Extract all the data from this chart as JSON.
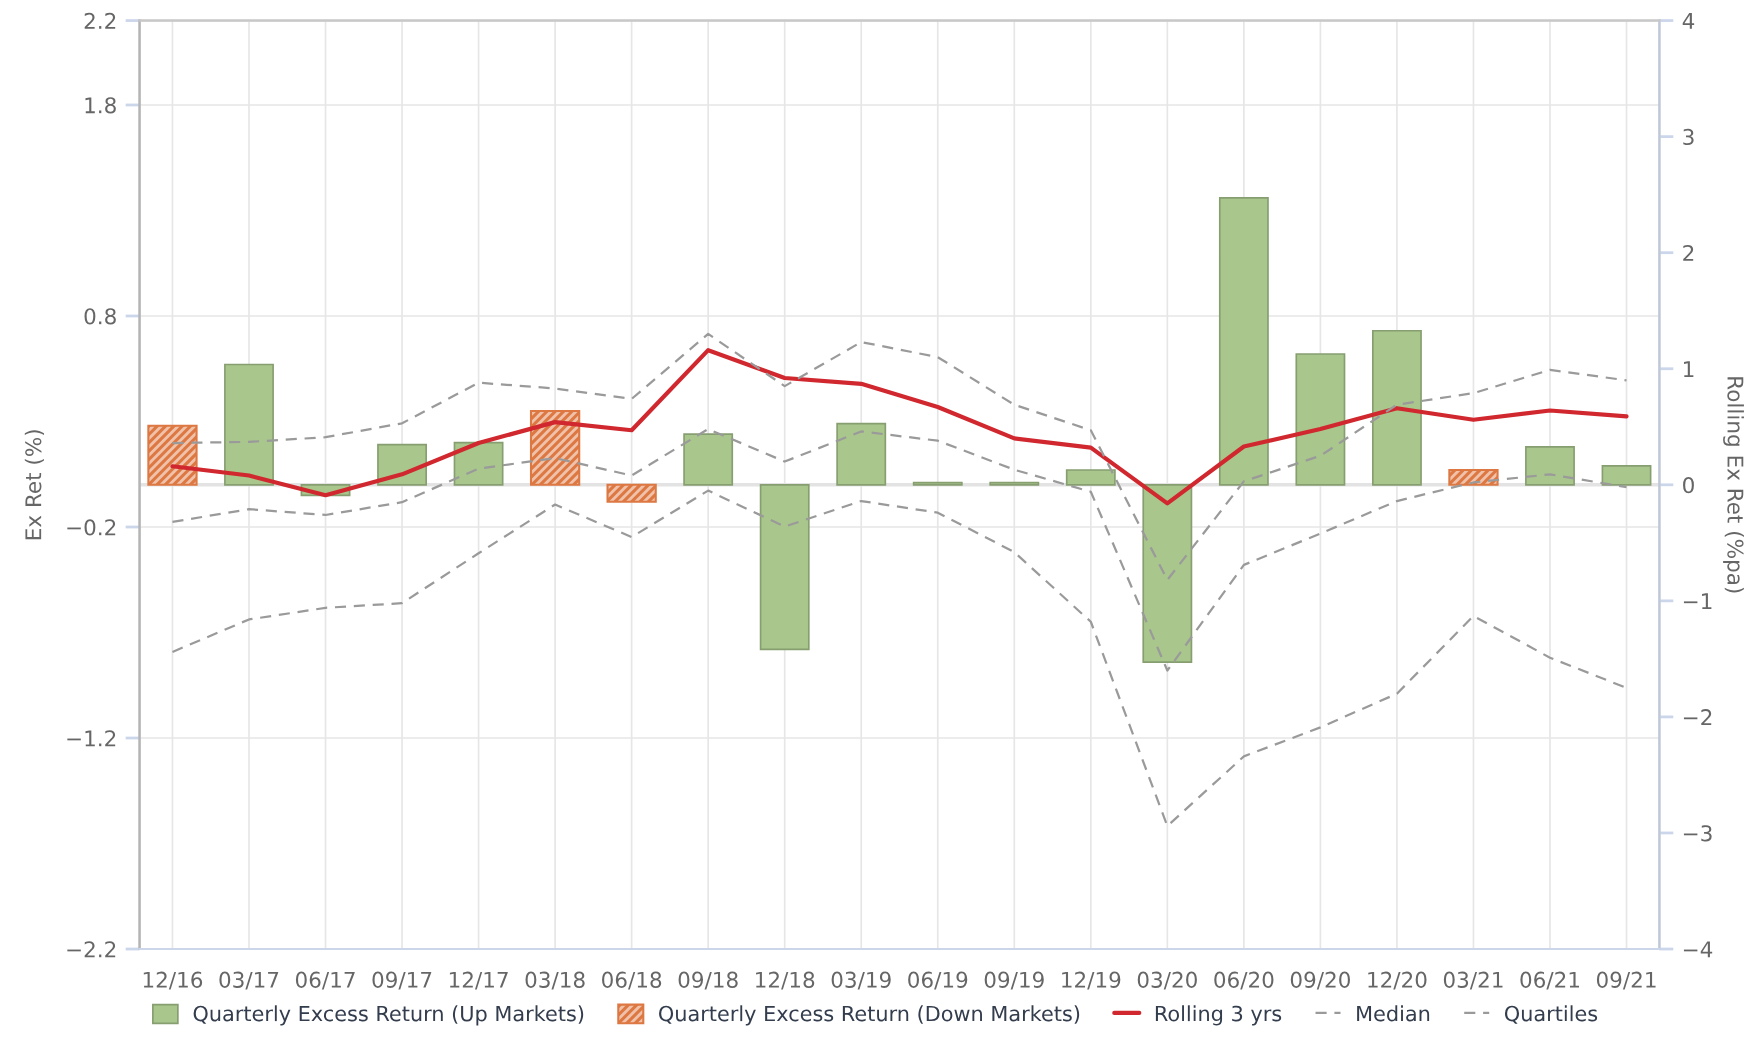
{
  "chart_data": {
    "type": "bar",
    "categories": [
      "12/16",
      "03/17",
      "06/17",
      "09/17",
      "12/17",
      "03/18",
      "06/18",
      "09/18",
      "12/18",
      "03/19",
      "06/19",
      "09/19",
      "12/19",
      "03/20",
      "06/20",
      "09/20",
      "12/20",
      "03/21",
      "06/21",
      "09/21"
    ],
    "series": [
      {
        "name": "Quarterly Excess Return (Up Markets)",
        "color": "#a9c68c",
        "values": [
          null,
          0.57,
          -0.05,
          0.19,
          0.2,
          null,
          null,
          0.24,
          -0.78,
          0.29,
          0.01,
          0.01,
          0.07,
          -0.84,
          1.36,
          0.62,
          0.73,
          null,
          0.18,
          0.09
        ]
      },
      {
        "name": "Quarterly Excess Return (Down Markets)",
        "color": "#dd7843",
        "values": [
          0.28,
          null,
          null,
          null,
          null,
          0.35,
          -0.08,
          null,
          null,
          null,
          null,
          null,
          null,
          null,
          null,
          null,
          null,
          0.07,
          null,
          null
        ]
      },
      {
        "name": "Rolling 3 yrs",
        "type": "line",
        "axis": "y2",
        "color": "#d0282e",
        "line_style": "solid",
        "values": [
          0.16,
          0.08,
          -0.09,
          0.09,
          0.36,
          0.54,
          0.47,
          1.16,
          0.92,
          0.87,
          0.67,
          0.4,
          0.32,
          -0.16,
          0.33,
          0.48,
          0.66,
          0.56,
          0.64,
          0.59
        ]
      },
      {
        "name": "Median",
        "type": "line",
        "axis": "y2",
        "color": "#9a9a9a",
        "line_style": "dashed",
        "values": [
          -0.32,
          -0.21,
          -0.26,
          -0.15,
          0.14,
          0.23,
          0.08,
          0.48,
          0.2,
          0.46,
          0.38,
          0.13,
          -0.06,
          -1.6,
          -0.69,
          -0.42,
          -0.14,
          0.02,
          0.09,
          -0.02
        ]
      },
      {
        "name": "Quartiles",
        "type": "line",
        "axis": "y2",
        "color": "#9a9a9a",
        "line_style": "dashed",
        "values": [
          0.36,
          0.37,
          0.41,
          0.53,
          0.88,
          0.83,
          0.74,
          1.3,
          0.85,
          1.23,
          1.1,
          0.69,
          0.47,
          -0.82,
          0.03,
          0.25,
          0.69,
          0.79,
          0.99,
          0.9
        ]
      },
      {
        "type": "line",
        "axis": "y2",
        "color": "#9a9a9a",
        "line_style": "dashed",
        "values": [
          -1.44,
          -1.16,
          -1.06,
          -1.02,
          -0.59,
          -0.17,
          -0.45,
          -0.05,
          -0.36,
          -0.14,
          -0.24,
          -0.58,
          -1.18,
          -2.94,
          -2.34,
          -2.09,
          -1.8,
          -1.13,
          -1.49,
          -1.75
        ]
      }
    ],
    "ylabel": "Ex Ret (%)",
    "y2label": "Rolling Ex Ret (%pa)",
    "ylim": [
      -2.2,
      2.2
    ],
    "yticks": [
      {
        "value": -2.2,
        "label": "−2.2"
      },
      {
        "value": -1.2,
        "label": "−1.2"
      },
      {
        "value": -0.2,
        "label": "−0.2"
      },
      0.8,
      1.8,
      2.2
    ],
    "y2lim": [
      -4,
      4
    ],
    "y2ticks": [
      {
        "value": -4,
        "label": "−4"
      },
      {
        "value": -3,
        "label": "−3"
      },
      {
        "value": -2,
        "label": "−2"
      },
      {
        "value": -1,
        "label": "−1"
      },
      0,
      1,
      2,
      3,
      4
    ],
    "ref_lines": [
      {
        "axis": "y",
        "value": 0,
        "color": "#e3e3e3"
      }
    ],
    "grid": true,
    "legend": "bottom",
    "marker": "none"
  }
}
